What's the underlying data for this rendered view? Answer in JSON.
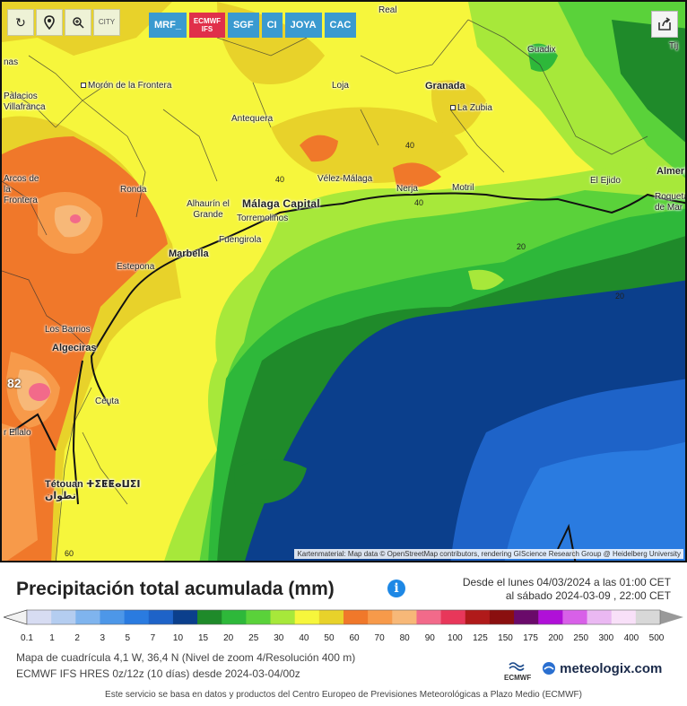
{
  "toolbar": {
    "refresh_icon": "refresh-icon",
    "pin_icon": "location-pin-icon",
    "zoom_icon": "zoom-icon",
    "city_toggle": "CITY",
    "models": [
      {
        "label": "MRF_",
        "active": false
      },
      {
        "label": "ECMWF IFS",
        "active": true
      },
      {
        "label": "SGF",
        "active": false
      },
      {
        "label": "CI",
        "active": false
      },
      {
        "label": "JOYA",
        "active": false
      },
      {
        "label": "CAC",
        "active": false
      }
    ],
    "share_icon": "share-icon"
  },
  "map": {
    "places": [
      {
        "name": "Morón de la Frontera"
      },
      {
        "name": "Palacios Villafranca"
      },
      {
        "name": "Antequera"
      },
      {
        "name": "Loja"
      },
      {
        "name": "Granada"
      },
      {
        "name": "La Zubia"
      },
      {
        "name": "Guadix"
      },
      {
        "name": "Ronda"
      },
      {
        "name": "Alhaurín el Grande"
      },
      {
        "name": "Málaga Capital"
      },
      {
        "name": "Torremolinos"
      },
      {
        "name": "Fuengirola"
      },
      {
        "name": "Marbella"
      },
      {
        "name": "Estepona"
      },
      {
        "name": "Vélez-Málaga"
      },
      {
        "name": "Nerja"
      },
      {
        "name": "Motril"
      },
      {
        "name": "El Ejido"
      },
      {
        "name": "Almería"
      },
      {
        "name": "Roquetas de Mar"
      },
      {
        "name": "Los Barrios"
      },
      {
        "name": "Algeciras"
      },
      {
        "name": "Ceuta"
      },
      {
        "name": "Tétouan ⵜⵉⵟⵟⴰⵡⵉⵏ تطوان"
      },
      {
        "name": "Arcos de la Frontera"
      },
      {
        "name": "Real"
      },
      {
        "name": "Tij"
      },
      {
        "name": "nas"
      },
      {
        "name": "r Ellalo"
      }
    ],
    "contour_labels": [
      "40",
      "40",
      "40",
      "20",
      "20",
      "82",
      "60"
    ],
    "attribution": "Kartenmaterial: Map data © OpenStreetMap contributors, rendering GIScience Research Group @ Heidelberg University"
  },
  "legend": {
    "title": "Precipitación total acumulada (mm)",
    "period_from": "Desde el lunes 04/03/2024 a  las 01:00  CET",
    "period_to": "al sábado 2024-03-09 ,  22:00  CET",
    "scale_values": [
      "0.1",
      "1",
      "2",
      "3",
      "5",
      "7",
      "10",
      "15",
      "20",
      "25",
      "30",
      "40",
      "50",
      "60",
      "70",
      "80",
      "90",
      "100",
      "125",
      "150",
      "175",
      "200",
      "250",
      "300",
      "400",
      "500"
    ],
    "scale_colors": [
      "#d7dcf2",
      "#b4cdf0",
      "#7fb4ee",
      "#4d97e8",
      "#2a7be0",
      "#1e63c8",
      "#0b3f8c",
      "#1f8a2a",
      "#2eb83a",
      "#5ad23a",
      "#a7e83a",
      "#f6f63c",
      "#e8d22a",
      "#f0782a",
      "#f79a4a",
      "#f7b878",
      "#f26a8a",
      "#e8375a",
      "#b01a1a",
      "#8a0f0f",
      "#6a0a6a",
      "#b010d8",
      "#d860e8",
      "#eab8f2",
      "#f8e0f8",
      "#d8d8d8"
    ],
    "info_line_1": "Mapa de cuadrícula 4,1 W, 36,4 N  (Nivel de zoom 4/Resolución 400 m)",
    "info_line_2": "ECMWF IFS HRES 0z/12z  (10 días)  desde 2024-03-04/00z",
    "footer": "Este servicio se basa en datos y productos del Centro Europeo de Previsiones Meteorológicas a Plazo Medio (ECMWF)",
    "ecmwf_logo": "ECMWF",
    "brand": "meteologix.com"
  }
}
